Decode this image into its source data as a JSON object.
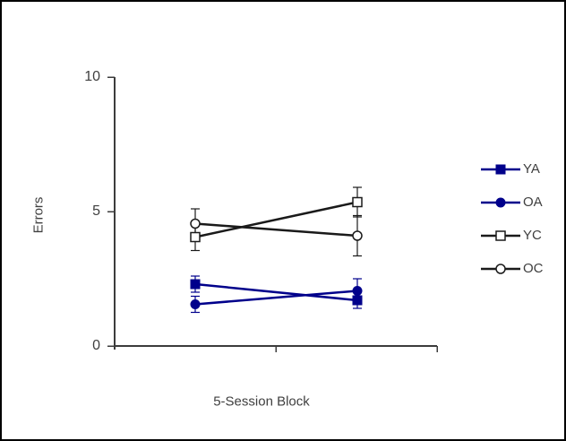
{
  "window": {
    "background": "#ffffff",
    "border_color": "#000000"
  },
  "chart_data": {
    "type": "line",
    "title": "",
    "xlabel": "5-Session Block",
    "ylabel": "Errors",
    "ylim": [
      0,
      10
    ],
    "yticks": [
      0,
      5,
      10
    ],
    "ytick_labels": [
      "0",
      "5",
      "10"
    ],
    "x_categories": [
      "",
      ""
    ],
    "grid": false,
    "legend_position": "right",
    "axis_color": "#3c3c3c",
    "text_color": "#3f3f3f",
    "error_bars": true,
    "series": [
      {
        "name": "YA",
        "color": "#00008B",
        "marker": "filled-square",
        "values": [
          2.3,
          1.7
        ],
        "errors": [
          0.3,
          0.3
        ]
      },
      {
        "name": "OA",
        "color": "#00008B",
        "marker": "filled-circle",
        "values": [
          1.55,
          2.05
        ],
        "errors": [
          0.3,
          0.45
        ]
      },
      {
        "name": "YC",
        "color": "#1a1a1a",
        "marker": "open-square",
        "values": [
          4.05,
          5.35
        ],
        "errors": [
          0.5,
          0.55
        ]
      },
      {
        "name": "OC",
        "color": "#1a1a1a",
        "marker": "open-circle",
        "values": [
          4.55,
          4.1
        ],
        "errors": [
          0.55,
          0.75
        ]
      }
    ]
  }
}
